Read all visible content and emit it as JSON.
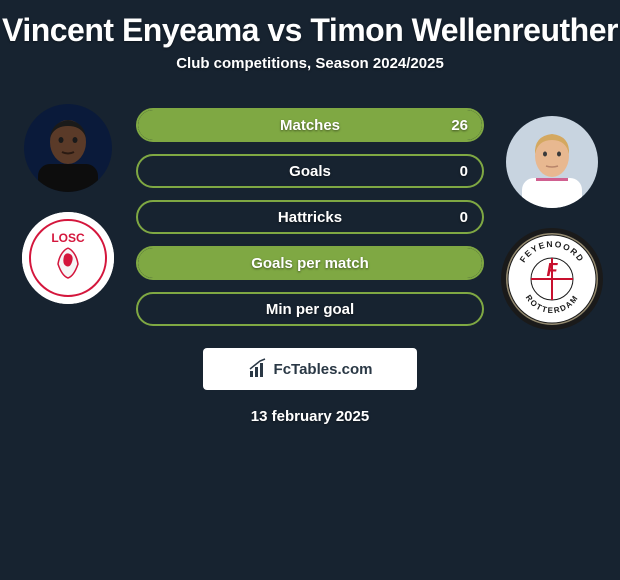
{
  "title": "Vincent Enyeama vs Timon Wellenreuther",
  "subtitle": "Club competitions, Season 2024/2025",
  "date": "13 february 2025",
  "attribution": "FcTables.com",
  "colors": {
    "background": "#172330",
    "bar_border": "#7fa843",
    "bar_fill": "#7fa843",
    "text": "#ffffff"
  },
  "player1": {
    "avatar_bg": "#0a1a3a",
    "skin": "#5a3a28",
    "shirt": "#0d0d0d"
  },
  "player2": {
    "avatar_bg": "#c8d4e0",
    "skin": "#e8b890",
    "hair": "#d4a860",
    "shirt": "#ffffff"
  },
  "club1": {
    "bg": "#ffffff",
    "accent": "#d4163c",
    "text": "LOSC"
  },
  "club2": {
    "bg": "#948a70",
    "inner": "#ffffff",
    "red": "#c8102e",
    "text1": "FEYENOORD",
    "text2": "ROTTERDAM"
  },
  "stats": [
    {
      "label": "Matches",
      "value": "26",
      "fill_pct": 100,
      "show_value": true
    },
    {
      "label": "Goals",
      "value": "0",
      "fill_pct": 0,
      "show_value": true
    },
    {
      "label": "Hattricks",
      "value": "0",
      "fill_pct": 0,
      "show_value": true
    },
    {
      "label": "Goals per match",
      "value": "",
      "fill_pct": 100,
      "show_value": false
    },
    {
      "label": "Min per goal",
      "value": "",
      "fill_pct": 0,
      "show_value": false
    }
  ]
}
